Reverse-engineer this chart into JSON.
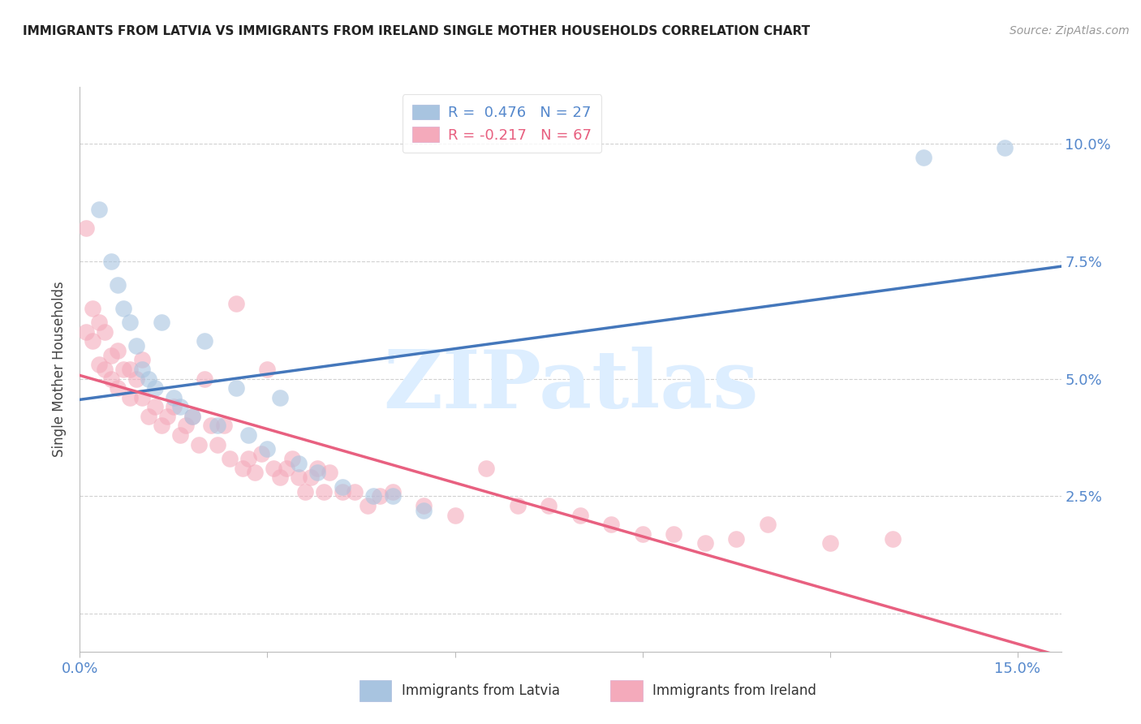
{
  "title": "IMMIGRANTS FROM LATVIA VS IMMIGRANTS FROM IRELAND SINGLE MOTHER HOUSEHOLDS CORRELATION CHART",
  "source": "Source: ZipAtlas.com",
  "ylabel": "Single Mother Households",
  "xlim": [
    0.0,
    0.157
  ],
  "ylim": [
    -0.008,
    0.112
  ],
  "legend_r_blue": "R =  0.476   N = 27",
  "legend_r_pink": "R = -0.217   N = 67",
  "blue_color": "#A8C4E0",
  "pink_color": "#F4AABB",
  "line_blue_color": "#4477BB",
  "line_pink_color": "#E86080",
  "tick_label_color": "#5588CC",
  "grid_color": "#CCCCCC",
  "title_color": "#222222",
  "watermark_color": "#DDEEFF",
  "latvia_x": [
    0.003,
    0.005,
    0.006,
    0.007,
    0.008,
    0.009,
    0.01,
    0.011,
    0.012,
    0.013,
    0.015,
    0.016,
    0.018,
    0.02,
    0.022,
    0.025,
    0.027,
    0.03,
    0.032,
    0.035,
    0.038,
    0.042,
    0.047,
    0.05,
    0.055,
    0.135,
    0.148
  ],
  "latvia_y": [
    0.086,
    0.075,
    0.07,
    0.065,
    0.062,
    0.057,
    0.052,
    0.05,
    0.048,
    0.062,
    0.046,
    0.044,
    0.042,
    0.058,
    0.04,
    0.048,
    0.038,
    0.035,
    0.046,
    0.032,
    0.03,
    0.027,
    0.025,
    0.025,
    0.022,
    0.097,
    0.099
  ],
  "ireland_x": [
    0.001,
    0.001,
    0.002,
    0.002,
    0.003,
    0.003,
    0.004,
    0.004,
    0.005,
    0.005,
    0.006,
    0.006,
    0.007,
    0.008,
    0.008,
    0.009,
    0.01,
    0.01,
    0.011,
    0.012,
    0.013,
    0.014,
    0.015,
    0.016,
    0.017,
    0.018,
    0.019,
    0.02,
    0.021,
    0.022,
    0.023,
    0.024,
    0.025,
    0.026,
    0.027,
    0.028,
    0.029,
    0.03,
    0.031,
    0.032,
    0.033,
    0.034,
    0.035,
    0.036,
    0.037,
    0.038,
    0.039,
    0.04,
    0.042,
    0.044,
    0.046,
    0.048,
    0.05,
    0.055,
    0.06,
    0.065,
    0.07,
    0.075,
    0.08,
    0.085,
    0.09,
    0.095,
    0.1,
    0.105,
    0.11,
    0.12,
    0.13
  ],
  "ireland_y": [
    0.082,
    0.06,
    0.065,
    0.058,
    0.062,
    0.053,
    0.06,
    0.052,
    0.05,
    0.055,
    0.048,
    0.056,
    0.052,
    0.052,
    0.046,
    0.05,
    0.054,
    0.046,
    0.042,
    0.044,
    0.04,
    0.042,
    0.044,
    0.038,
    0.04,
    0.042,
    0.036,
    0.05,
    0.04,
    0.036,
    0.04,
    0.033,
    0.066,
    0.031,
    0.033,
    0.03,
    0.034,
    0.052,
    0.031,
    0.029,
    0.031,
    0.033,
    0.029,
    0.026,
    0.029,
    0.031,
    0.026,
    0.03,
    0.026,
    0.026,
    0.023,
    0.025,
    0.026,
    0.023,
    0.021,
    0.031,
    0.023,
    0.023,
    0.021,
    0.019,
    0.017,
    0.017,
    0.015,
    0.016,
    0.019,
    0.015,
    0.016
  ]
}
